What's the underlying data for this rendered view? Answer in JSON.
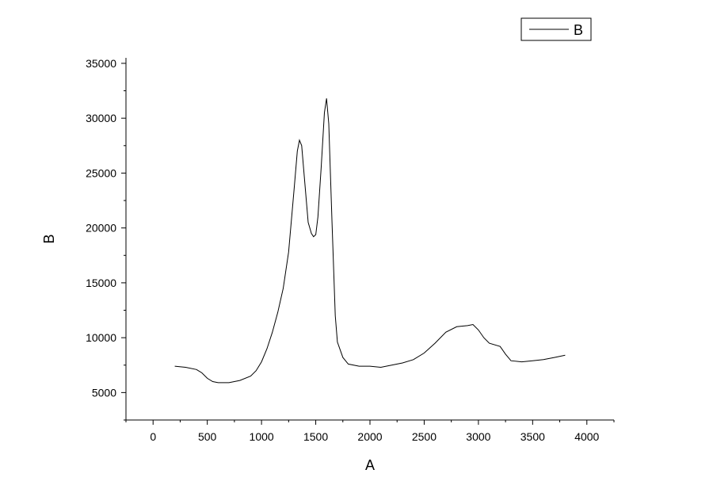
{
  "chart_data": {
    "type": "line",
    "xlabel": "A",
    "ylabel": "B",
    "xlim": [
      -250,
      4250
    ],
    "ylim": [
      2500,
      35500
    ],
    "x_ticks": [
      0,
      500,
      1000,
      1500,
      2000,
      2500,
      3000,
      3500,
      4000
    ],
    "x_tick_labels": [
      "0",
      "500",
      "1000",
      "1500",
      "2000",
      "2500",
      "3000",
      "3500",
      "4000"
    ],
    "y_ticks": [
      5000,
      10000,
      15000,
      20000,
      25000,
      30000,
      35000
    ],
    "y_tick_labels": [
      "5000",
      "10000",
      "15000",
      "20000",
      "25000",
      "30000",
      "35000"
    ],
    "grid": false,
    "legend": {
      "position": "top-right",
      "entries": [
        "B"
      ]
    },
    "series": [
      {
        "name": "B",
        "color": "#000000",
        "x": [
          200,
          300,
          400,
          450,
          500,
          550,
          600,
          700,
          800,
          900,
          950,
          1000,
          1050,
          1100,
          1150,
          1200,
          1250,
          1300,
          1330,
          1350,
          1370,
          1400,
          1430,
          1460,
          1480,
          1500,
          1520,
          1550,
          1580,
          1600,
          1620,
          1650,
          1680,
          1700,
          1750,
          1800,
          1900,
          2000,
          2100,
          2200,
          2300,
          2400,
          2500,
          2600,
          2700,
          2800,
          2900,
          2950,
          3000,
          3050,
          3100,
          3200,
          3250,
          3300,
          3400,
          3500,
          3600,
          3700,
          3800
        ],
        "y": [
          7400,
          7300,
          7100,
          6800,
          6300,
          6000,
          5900,
          5900,
          6100,
          6500,
          7000,
          7800,
          9000,
          10500,
          12300,
          14500,
          17800,
          23500,
          27000,
          28000,
          27500,
          24000,
          20500,
          19500,
          19200,
          19400,
          21000,
          25500,
          30500,
          31800,
          29500,
          20500,
          12000,
          9600,
          8200,
          7600,
          7400,
          7400,
          7300,
          7500,
          7700,
          8000,
          8600,
          9500,
          10500,
          11000,
          11100,
          11200,
          10700,
          10000,
          9500,
          9200,
          8500,
          7900,
          7800,
          7900,
          8000,
          8200,
          8400
        ]
      }
    ]
  }
}
